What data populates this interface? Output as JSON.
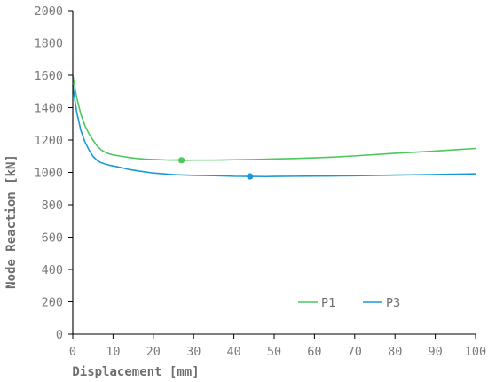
{
  "chart_data": {
    "type": "line",
    "title": "",
    "xlabel": "Displacement [mm]",
    "ylabel": "Node Reaction [kN]",
    "xlim": [
      0,
      100
    ],
    "ylim": [
      0,
      2000
    ],
    "xticks": [
      0,
      10,
      20,
      30,
      40,
      50,
      60,
      70,
      80,
      90,
      100
    ],
    "yticks": [
      0,
      200,
      400,
      600,
      800,
      1000,
      1200,
      1400,
      1600,
      1800,
      2000
    ],
    "grid": false,
    "legend": "bottom-right",
    "series": [
      {
        "name": "P1",
        "color": "#4cc85c",
        "x": [
          0,
          0.5,
          1,
          2,
          3,
          4,
          5,
          6,
          7,
          8,
          9,
          10,
          12,
          14,
          16,
          18,
          20,
          22,
          24,
          26,
          27,
          28,
          30,
          35,
          40,
          45,
          50,
          55,
          60,
          65,
          70,
          75,
          80,
          85,
          90,
          95,
          100
        ],
        "y": [
          1600,
          1530,
          1460,
          1360,
          1290,
          1240,
          1200,
          1165,
          1140,
          1125,
          1115,
          1108,
          1100,
          1092,
          1086,
          1082,
          1080,
          1078,
          1076,
          1077,
          1075,
          1075,
          1076,
          1076,
          1078,
          1080,
          1083,
          1086,
          1090,
          1095,
          1102,
          1110,
          1118,
          1125,
          1132,
          1140,
          1148
        ]
      },
      {
        "name": "P3",
        "color": "#1b9ad6",
        "x": [
          0,
          0.5,
          1,
          2,
          3,
          4,
          5,
          6,
          7,
          8,
          9,
          10,
          12,
          14,
          16,
          18,
          20,
          22,
          24,
          26,
          28,
          30,
          35,
          40,
          44,
          48,
          50,
          55,
          60,
          65,
          70,
          75,
          80,
          85,
          90,
          95,
          100
        ],
        "y": [
          1540,
          1450,
          1370,
          1260,
          1190,
          1140,
          1100,
          1075,
          1060,
          1052,
          1045,
          1040,
          1030,
          1018,
          1010,
          1003,
          996,
          992,
          988,
          985,
          983,
          982,
          980,
          976,
          975,
          974,
          975,
          976,
          977,
          978,
          979,
          981,
          983,
          985,
          987,
          989,
          991
        ]
      }
    ],
    "markers": [
      {
        "series": "P1",
        "x": 27,
        "y": 1075
      },
      {
        "series": "P3",
        "x": 44,
        "y": 975
      }
    ]
  }
}
